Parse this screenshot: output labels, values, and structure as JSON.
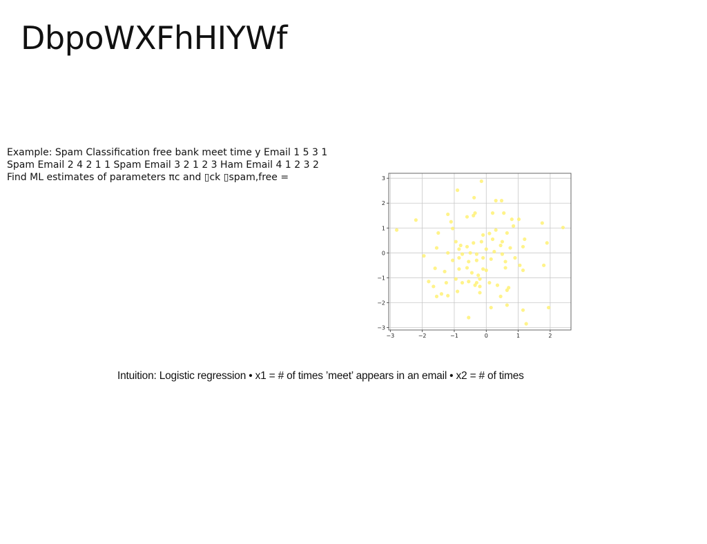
{
  "slide": {
    "title": "DbpoWXFhHIYWf"
  },
  "example": {
    "lines": [
      "Example: Spam Classification free bank meet time y Email 1 5 3 1",
      "Spam Email 2 4 2 1 1 Spam Email 3 2 1 2 3 Ham Email 4 1 2 3 2",
      "Find ML estimates of parameters πc and ▯ck ▯spam,free ="
    ]
  },
  "intuition": {
    "text": "Intuition: Logistic regression • x1 = # of times ’meet’ appears in an email • x2 = # of times"
  },
  "chart_data": {
    "type": "scatter",
    "title": "",
    "xlabel": "",
    "ylabel": "",
    "xlim": [
      -3.05,
      2.65
    ],
    "ylim": [
      -3.1,
      3.2
    ],
    "xticks": [
      -3,
      -2,
      -1,
      0,
      1,
      2
    ],
    "yticks": [
      -3,
      -2,
      -1,
      0,
      1,
      2,
      3
    ],
    "xtick_labels": [
      "−3",
      "−2",
      "−1",
      "0",
      "1",
      "2"
    ],
    "ytick_labels": [
      "−3",
      "−2",
      "−1",
      "0",
      "1",
      "2",
      "3"
    ],
    "grid": true,
    "color": "#fff176",
    "series": [
      {
        "points": [
          [
            -0.15,
            2.88
          ],
          [
            -0.9,
            2.52
          ],
          [
            -0.38,
            2.22
          ],
          [
            0.3,
            2.1
          ],
          [
            0.48,
            2.1
          ],
          [
            -1.2,
            1.55
          ],
          [
            -0.6,
            1.45
          ],
          [
            -0.4,
            1.5
          ],
          [
            -0.35,
            1.6
          ],
          [
            0.2,
            1.6
          ],
          [
            0.55,
            1.6
          ],
          [
            -2.2,
            1.32
          ],
          [
            -1.1,
            1.25
          ],
          [
            0.8,
            1.35
          ],
          [
            1.02,
            1.35
          ],
          [
            1.75,
            1.2
          ],
          [
            -2.8,
            0.92
          ],
          [
            -1.05,
            0.98
          ],
          [
            0.85,
            1.08
          ],
          [
            2.4,
            1.02
          ],
          [
            -1.5,
            0.8
          ],
          [
            -0.1,
            0.72
          ],
          [
            0.1,
            0.78
          ],
          [
            0.3,
            0.92
          ],
          [
            0.65,
            0.8
          ],
          [
            1.2,
            0.55
          ],
          [
            1.9,
            0.4
          ],
          [
            -0.95,
            0.45
          ],
          [
            -0.8,
            0.3
          ],
          [
            -0.6,
            0.25
          ],
          [
            -0.4,
            0.4
          ],
          [
            -0.15,
            0.45
          ],
          [
            0.2,
            0.55
          ],
          [
            0.45,
            0.3
          ],
          [
            0.5,
            0.45
          ],
          [
            0.75,
            0.2
          ],
          [
            1.15,
            0.25
          ],
          [
            -1.55,
            0.2
          ],
          [
            -1.2,
            0.0
          ],
          [
            -0.85,
            0.15
          ],
          [
            -0.75,
            -0.05
          ],
          [
            -0.5,
            0.0
          ],
          [
            -0.3,
            -0.05
          ],
          [
            0.0,
            0.15
          ],
          [
            0.25,
            0.05
          ],
          [
            0.5,
            -0.05
          ],
          [
            0.9,
            -0.2
          ],
          [
            -1.95,
            -0.12
          ],
          [
            -1.05,
            -0.3
          ],
          [
            -0.85,
            -0.2
          ],
          [
            -0.55,
            -0.35
          ],
          [
            -0.3,
            -0.3
          ],
          [
            -0.1,
            -0.2
          ],
          [
            0.15,
            -0.25
          ],
          [
            0.6,
            -0.35
          ],
          [
            1.05,
            -0.5
          ],
          [
            1.8,
            -0.5
          ],
          [
            -1.6,
            -0.62
          ],
          [
            -1.3,
            -0.75
          ],
          [
            -0.85,
            -0.65
          ],
          [
            -0.6,
            -0.6
          ],
          [
            -0.45,
            -0.8
          ],
          [
            -0.25,
            -0.9
          ],
          [
            -0.1,
            -0.65
          ],
          [
            0.0,
            -0.7
          ],
          [
            0.6,
            -0.6
          ],
          [
            1.15,
            -0.7
          ],
          [
            -1.8,
            -1.15
          ],
          [
            -1.65,
            -1.35
          ],
          [
            -1.25,
            -1.2
          ],
          [
            -0.95,
            -1.05
          ],
          [
            -0.75,
            -1.2
          ],
          [
            -0.55,
            -1.15
          ],
          [
            -0.3,
            -1.2
          ],
          [
            -0.2,
            -1.05
          ],
          [
            0.1,
            -1.2
          ],
          [
            0.65,
            -1.5
          ],
          [
            0.7,
            -1.4
          ],
          [
            -1.55,
            -1.75
          ],
          [
            -1.4,
            -1.65
          ],
          [
            -1.2,
            -1.72
          ],
          [
            -0.9,
            -1.55
          ],
          [
            -0.2,
            -1.6
          ],
          [
            0.45,
            -1.75
          ],
          [
            0.65,
            -2.1
          ],
          [
            1.15,
            -2.3
          ],
          [
            -0.55,
            -2.6
          ],
          [
            0.15,
            -2.2
          ],
          [
            1.25,
            -2.85
          ],
          [
            1.95,
            -2.2
          ],
          [
            -0.35,
            -1.3
          ],
          [
            -0.2,
            -1.35
          ],
          [
            0.35,
            -1.3
          ]
        ]
      }
    ]
  }
}
